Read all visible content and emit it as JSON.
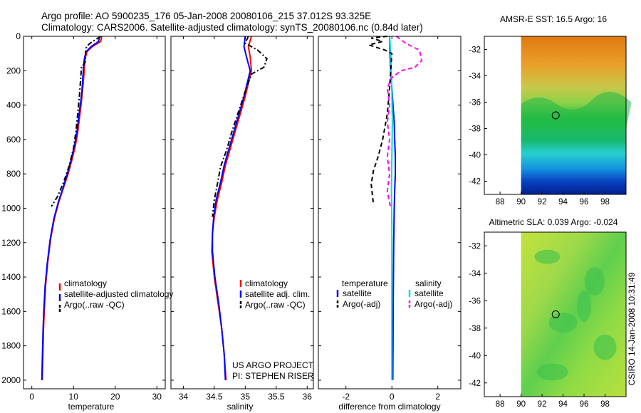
{
  "header": {
    "line1": "Argo profile: AO 5900235_176 05-Jan-2008 20080106_215 37.012S 93.325E",
    "line2": "Climatology: CARS2006. Satellite-adjusted climatology: synTS_20080106.nc (0.84d later)"
  },
  "footer": {
    "project": "US ARGO PROJECT",
    "pi": "PI: STEPHEN RISER",
    "stamp": "CSIRO 14-Jan-2008 10:31:49"
  },
  "colors": {
    "climatology": "#ff0000",
    "satellite": "#0000ff",
    "argo": "#000000",
    "sat_diff_s": "#00dddd",
    "argo_diff_s": "#ff00ff"
  },
  "chart_data": [
    {
      "type": "line",
      "id": "temperature",
      "xlabel": "temperature",
      "ylabel": "",
      "xlim": [
        -2,
        32
      ],
      "ylim": [
        2050,
        0
      ],
      "xticks": [
        0,
        10,
        20,
        30
      ],
      "yticks": [
        0,
        200,
        400,
        600,
        800,
        1000,
        1200,
        1400,
        1600,
        1800,
        2000
      ],
      "legend": [
        "climatology",
        "satellite-adjusted climatology",
        "Argo(..raw -QC)"
      ],
      "series": [
        {
          "name": "climatology",
          "style": "solid",
          "color": "#ff0000",
          "x": [
            16.8,
            16.5,
            14.5,
            13.2,
            12.8,
            12.6,
            12.4,
            12.1,
            11.8,
            11.4,
            11.0,
            10.4,
            9.6,
            8.7,
            7.6,
            6.5,
            5.4,
            4.5,
            3.8,
            3.3,
            3.0,
            2.8,
            2.7,
            2.6,
            2.5
          ],
          "y": [
            0,
            30,
            60,
            90,
            130,
            180,
            250,
            330,
            400,
            480,
            560,
            640,
            720,
            800,
            880,
            960,
            1060,
            1180,
            1320,
            1450,
            1580,
            1700,
            1800,
            1900,
            2000
          ]
        },
        {
          "name": "satellite",
          "style": "solid",
          "color": "#0000ff",
          "x": [
            16.3,
            16.0,
            14.2,
            13.0,
            12.6,
            12.4,
            12.2,
            12.0,
            11.6,
            11.2,
            10.8,
            10.2,
            9.4,
            8.5,
            7.5,
            6.4,
            5.3,
            4.4,
            3.7,
            3.2,
            2.9,
            2.7,
            2.6,
            2.5,
            2.4
          ],
          "y": [
            0,
            30,
            60,
            90,
            130,
            180,
            250,
            330,
            400,
            480,
            560,
            640,
            720,
            800,
            880,
            960,
            1060,
            1180,
            1320,
            1450,
            1580,
            1700,
            1800,
            1900,
            2000
          ]
        },
        {
          "name": "Argo",
          "style": "dashdot",
          "color": "#000000",
          "x": [
            16.5,
            14.0,
            13.1,
            12.9,
            12.8,
            11.9,
            11.7,
            11.4,
            11.0,
            10.6,
            10.0,
            9.0,
            7.6,
            6.2,
            4.7
          ],
          "y": [
            0,
            40,
            60,
            90,
            150,
            180,
            250,
            350,
            450,
            550,
            650,
            750,
            850,
            930,
            990
          ]
        }
      ]
    },
    {
      "type": "line",
      "id": "salinity",
      "xlabel": "salinity",
      "ylabel": "",
      "xlim": [
        33.8,
        36.1
      ],
      "ylim": [
        2050,
        0
      ],
      "xticks": [
        34,
        34.5,
        35,
        35.5,
        36
      ],
      "legend": [
        "climatology",
        "satellite adj. clim.",
        "Argo(..raw -QC)"
      ],
      "series": [
        {
          "name": "climatology",
          "style": "solid",
          "color": "#ff0000",
          "x": [
            35.1,
            35.05,
            35.08,
            35.1,
            35.0,
            34.92,
            34.84,
            34.76,
            34.68,
            34.62,
            34.55,
            34.5,
            34.47,
            34.46,
            34.5,
            34.56,
            34.62,
            34.66,
            34.69
          ],
          "y": [
            0,
            60,
            120,
            200,
            350,
            450,
            550,
            650,
            750,
            850,
            950,
            1050,
            1150,
            1250,
            1400,
            1550,
            1700,
            1850,
            2000
          ]
        },
        {
          "name": "satellite",
          "style": "solid",
          "color": "#0000ff",
          "x": [
            35.0,
            34.98,
            35.02,
            35.08,
            34.98,
            34.9,
            34.82,
            34.74,
            34.66,
            34.6,
            34.53,
            34.49,
            34.47,
            34.47,
            34.51,
            34.57,
            34.62,
            34.66,
            34.68
          ],
          "y": [
            0,
            60,
            120,
            200,
            350,
            450,
            550,
            650,
            750,
            850,
            950,
            1050,
            1150,
            1250,
            1400,
            1550,
            1700,
            1850,
            2000
          ]
        },
        {
          "name": "Argo",
          "style": "dashdot",
          "color": "#000000",
          "x": [
            35.05,
            35.0,
            35.2,
            35.35,
            35.3,
            35.1,
            35.0,
            34.88,
            34.78,
            34.7,
            34.6,
            34.55,
            34.5,
            34.47
          ],
          "y": [
            0,
            40,
            80,
            130,
            180,
            220,
            320,
            450,
            560,
            660,
            760,
            860,
            950,
            1050
          ]
        }
      ]
    },
    {
      "type": "line",
      "id": "difference",
      "xlabel": "difference from climatology",
      "ylabel": "",
      "xlim": [
        -3.2,
        3.0
      ],
      "ylim": [
        2050,
        0
      ],
      "xticks": [
        -2,
        0,
        2
      ],
      "legend_title_left": "temperature",
      "legend_title_right": "salinity",
      "legend": [
        "satellite",
        "Argo(-adj)",
        "satellite",
        "Argo(-adj)"
      ],
      "series": [
        {
          "name": "temperature satellite",
          "style": "solid",
          "color": "#0000ff",
          "x": [
            -0.1,
            -0.08,
            -0.05,
            0.0,
            0.05,
            0.1,
            0.12,
            0.15,
            0.15,
            0.12,
            0.1,
            0.08,
            0.06,
            0.05,
            0.04
          ],
          "y": [
            0,
            100,
            200,
            300,
            400,
            500,
            600,
            700,
            800,
            900,
            1000,
            1200,
            1500,
            1800,
            2000
          ]
        },
        {
          "name": "salinity satellite",
          "style": "solid",
          "color": "#00dddd",
          "x": [
            -0.1,
            -0.05,
            -0.03,
            0.0,
            0.02,
            0.0,
            -0.02,
            0.0,
            0.0,
            0.0,
            0.0
          ],
          "y": [
            0,
            100,
            200,
            300,
            500,
            700,
            900,
            1100,
            1400,
            1700,
            2000
          ]
        },
        {
          "name": "temperature Argo",
          "style": "dashed",
          "color": "#000000",
          "x": [
            -0.2,
            -0.9,
            -0.4,
            -1.0,
            -0.3,
            0.0,
            -0.05,
            -0.1,
            -0.2,
            -0.4,
            -0.6,
            -0.8,
            -0.9,
            -0.8
          ],
          "y": [
            0,
            10,
            30,
            50,
            80,
            100,
            200,
            300,
            450,
            600,
            700,
            780,
            860,
            980
          ]
        },
        {
          "name": "salinity Argo",
          "style": "dashed",
          "color": "#ff00ff",
          "x": [
            0.2,
            0.6,
            1.2,
            1.3,
            1.0,
            0.4,
            0.0,
            -0.2,
            -0.1,
            -0.2,
            -0.1,
            -0.2,
            -0.1,
            -0.2,
            -0.05
          ],
          "y": [
            0,
            40,
            80,
            140,
            180,
            200,
            240,
            300,
            400,
            500,
            600,
            700,
            800,
            900,
            1000
          ]
        }
      ]
    }
  ],
  "maps": [
    {
      "id": "sst",
      "title": "AMSR-E SST: 16.5 Argo: 16",
      "xticks": [
        88,
        90,
        92,
        94,
        96,
        98
      ],
      "yticks": [
        -32,
        -34,
        -36,
        -38,
        -40,
        -42
      ],
      "xlim": [
        86.5,
        100
      ],
      "ylim": [
        -43,
        -31
      ],
      "data_xmin": 90,
      "marker": [
        93.3,
        -37.0
      ]
    },
    {
      "id": "sla",
      "title": "Altimetric SLA: 0.039 Argo: -0.024",
      "xticks": [
        88,
        90,
        92,
        94,
        96,
        98
      ],
      "yticks": [
        -32,
        -34,
        -36,
        -38,
        -40,
        -42
      ],
      "xlim": [
        86.5,
        100
      ],
      "ylim": [
        -43,
        -31
      ],
      "data_xmin": 90,
      "marker": [
        93.3,
        -37.0
      ]
    }
  ]
}
